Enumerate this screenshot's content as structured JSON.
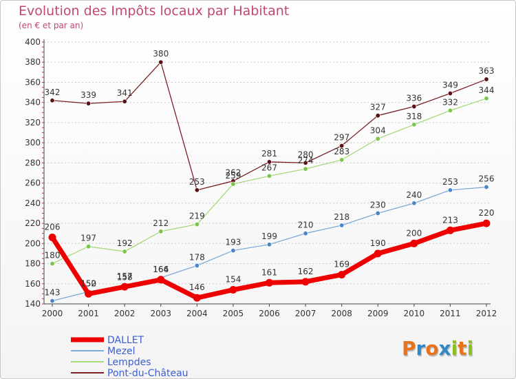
{
  "title": "Evolution des Impôts locaux par Habitant",
  "subtitle": "(en € et par an)",
  "logo": {
    "text": "Proxiti",
    "colors": [
      "#e8731a",
      "#2f88c9",
      "#e8731a",
      "#2f88c9",
      "#8cbf26",
      "#e8731a",
      "#8cbf26"
    ]
  },
  "chart_data": {
    "type": "line",
    "x": [
      "2000",
      "2001",
      "2002",
      "2003",
      "2004",
      "2005",
      "2006",
      "2007",
      "2008",
      "2009",
      "2010",
      "2011",
      "2012"
    ],
    "ylim": [
      140,
      400
    ],
    "yticks": [
      140,
      160,
      180,
      200,
      220,
      240,
      260,
      280,
      300,
      320,
      340,
      360,
      380,
      400
    ],
    "grid": "horizontal-dotted",
    "legend_position": "bottom-left",
    "series": [
      {
        "name": "Pont-du-Château",
        "color": "#7a1f24",
        "point_color": "#5a1015",
        "width": 1.3,
        "values": [
          342,
          339,
          341,
          380,
          253,
          262,
          281,
          280,
          297,
          327,
          336,
          349,
          363
        ]
      },
      {
        "name": "Lempdes",
        "color": "#a6d97a",
        "point_color": "#7cc44a",
        "width": 1.3,
        "values": [
          180,
          197,
          192,
          212,
          219,
          259,
          267,
          274,
          283,
          304,
          318,
          332,
          344
        ]
      },
      {
        "name": "Mezel",
        "color": "#7fa9d6",
        "point_color": "#4a86c5",
        "width": 1.3,
        "values": [
          143,
          152,
          158,
          166,
          178,
          193,
          199,
          210,
          218,
          230,
          240,
          253,
          256
        ]
      },
      {
        "name": "DALLET",
        "color": "#ee0000",
        "point_color": "#ee0000",
        "width": 7,
        "values": [
          206,
          150,
          157,
          164,
          146,
          154,
          161,
          162,
          169,
          190,
          200,
          213,
          220
        ]
      }
    ],
    "legend_order": [
      "DALLET",
      "Mezel",
      "Lempdes",
      "Pont-du-Château"
    ]
  }
}
